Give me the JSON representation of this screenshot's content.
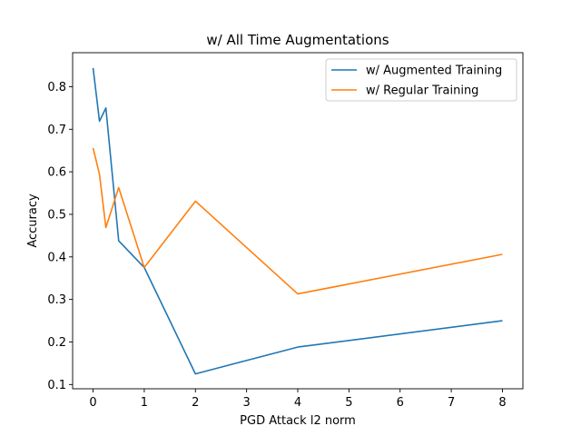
{
  "chart_data": {
    "type": "line",
    "title": "w/ All Time Augmentations",
    "xlabel": "PGD Attack l2 norm",
    "ylabel": "Accuracy",
    "xlim": [
      -0.4,
      8.4
    ],
    "ylim": [
      0.09,
      0.88
    ],
    "xticks": [
      0,
      1,
      2,
      3,
      4,
      5,
      6,
      7,
      8
    ],
    "yticks": [
      0.1,
      0.2,
      0.3,
      0.4,
      0.5,
      0.6,
      0.7,
      0.8
    ],
    "grid": false,
    "legend_position": "upper right",
    "series": [
      {
        "name": "w/ Augmented Training",
        "color": "#1f77b4",
        "x": [
          0,
          0.125,
          0.25,
          0.5,
          1,
          2,
          4,
          8
        ],
        "y": [
          0.844,
          0.719,
          0.75,
          0.438,
          0.375,
          0.125,
          0.188,
          0.25
        ]
      },
      {
        "name": "w/ Regular Training",
        "color": "#ff7f0e",
        "x": [
          0,
          0.125,
          0.25,
          0.5,
          1,
          2,
          4,
          8
        ],
        "y": [
          0.656,
          0.594,
          0.469,
          0.563,
          0.375,
          0.531,
          0.313,
          0.406
        ]
      }
    ]
  }
}
